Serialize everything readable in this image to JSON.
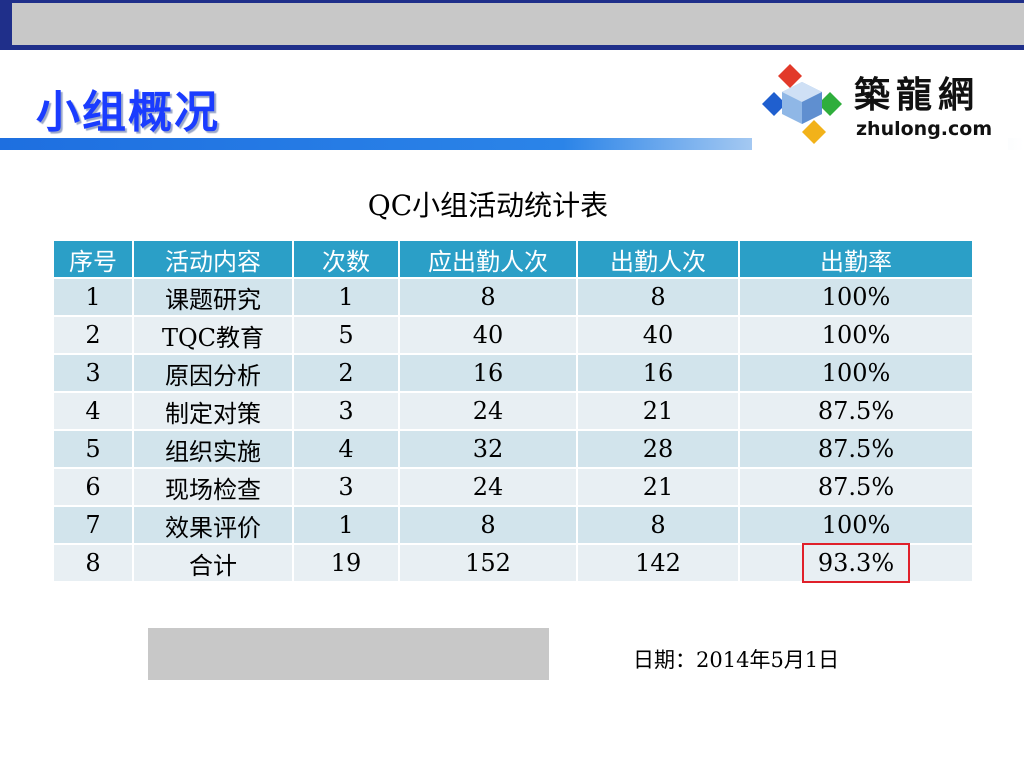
{
  "slide": {
    "title": "小组概况"
  },
  "logo": {
    "cn_text": "築龍網",
    "en_text": "zhulong.com",
    "colors": {
      "red": "#e23a2a",
      "green": "#2fae3c",
      "blue": "#1f5fcf",
      "yellow": "#f2b21a",
      "cube": "#8fb7e6"
    }
  },
  "table": {
    "title": "QC小组活动统计表",
    "headers": [
      "序号",
      "活动内容",
      "次数",
      "应出勤人次",
      "出勤人次",
      "出勤率"
    ],
    "rows": [
      [
        "1",
        "课题研究",
        "1",
        "8",
        "8",
        "100%"
      ],
      [
        "2",
        "TQC教育",
        "5",
        "40",
        "40",
        "100%"
      ],
      [
        "3",
        "原因分析",
        "2",
        "16",
        "16",
        "100%"
      ],
      [
        "4",
        "制定对策",
        "3",
        "24",
        "21",
        "87.5%"
      ],
      [
        "5",
        "组织实施",
        "4",
        "32",
        "28",
        "87.5%"
      ],
      [
        "6",
        "现场检查",
        "3",
        "24",
        "21",
        "87.5%"
      ],
      [
        "7",
        "效果评价",
        "1",
        "8",
        "8",
        "100%"
      ],
      [
        "8",
        "合计",
        "19",
        "152",
        "142",
        "93.3%"
      ]
    ],
    "header_color": "#2b9fc7",
    "highlight_color": "#e0202a"
  },
  "footer": {
    "date": "日期：2014年5月1日"
  }
}
